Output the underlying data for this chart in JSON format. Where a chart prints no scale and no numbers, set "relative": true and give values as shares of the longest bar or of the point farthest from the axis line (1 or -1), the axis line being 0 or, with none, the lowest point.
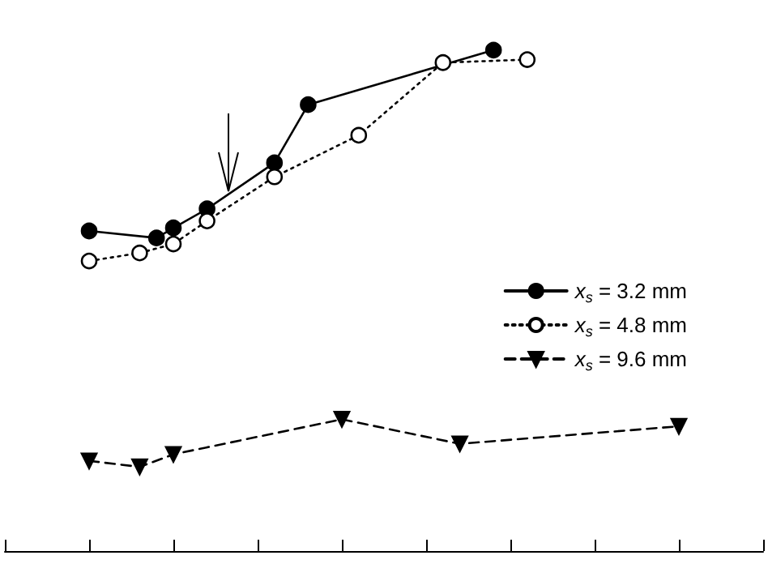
{
  "chart_data": {
    "type": "line",
    "relative": true,
    "legend": "right",
    "categories": [
      null,
      null,
      null,
      null,
      null,
      null,
      null,
      null,
      null,
      null,
      null,
      null,
      null,
      null,
      null,
      null,
      null,
      null,
      null,
      null,
      null,
      null,
      null,
      null,
      null,
      null,
      null,
      null,
      null,
      null,
      null,
      null,
      null,
      null,
      null,
      null,
      null,
      null,
      null,
      null,
      null,
      null,
      null,
      null,
      null,
      null
    ],
    "series": [
      {
        "name": "x$_{s}$ = 3.2 mm",
        "color": "#000000",
        "marker": "circle",
        "line_style": "solid",
        "values": [
          null,
          null,
          null,
          null,
          null,
          0.639,
          null,
          null,
          null,
          0.625,
          0.645,
          null,
          0.683,
          null,
          null,
          null,
          0.775,
          null,
          0.891,
          null,
          null,
          null,
          null,
          null,
          null,
          null,
          null,
          null,
          null,
          1.0,
          null,
          null,
          null,
          null,
          null,
          null,
          null,
          null,
          null,
          null,
          null,
          null,
          null,
          null,
          null,
          null
        ]
      },
      {
        "name": "x$_{s}$ = 4.8 mm",
        "color": "#000000",
        "marker": "circle-open",
        "line_style": "dotted",
        "values": [
          null,
          null,
          null,
          null,
          null,
          0.579,
          null,
          null,
          0.595,
          null,
          0.613,
          null,
          0.659,
          null,
          null,
          null,
          0.747,
          null,
          null,
          null,
          null,
          0.83,
          null,
          null,
          null,
          null,
          0.975,
          null,
          null,
          null,
          null,
          0.981,
          null,
          null,
          null,
          null,
          null,
          null,
          null,
          null,
          null,
          null,
          null,
          null,
          null,
          null
        ]
      },
      {
        "name": "x$_{s}$ = 9.6 mm",
        "color": "#000000",
        "marker": "triangle-down",
        "line_style": "dashed",
        "values": [
          null,
          null,
          null,
          null,
          null,
          0.18,
          null,
          null,
          0.168,
          null,
          0.193,
          null,
          null,
          null,
          null,
          null,
          null,
          null,
          null,
          null,
          0.263,
          null,
          null,
          null,
          null,
          null,
          null,
          0.214,
          null,
          null,
          null,
          null,
          null,
          null,
          null,
          null,
          null,
          null,
          null,
          null,
          0.249,
          null,
          null,
          null,
          null,
          null
        ]
      }
    ]
  }
}
